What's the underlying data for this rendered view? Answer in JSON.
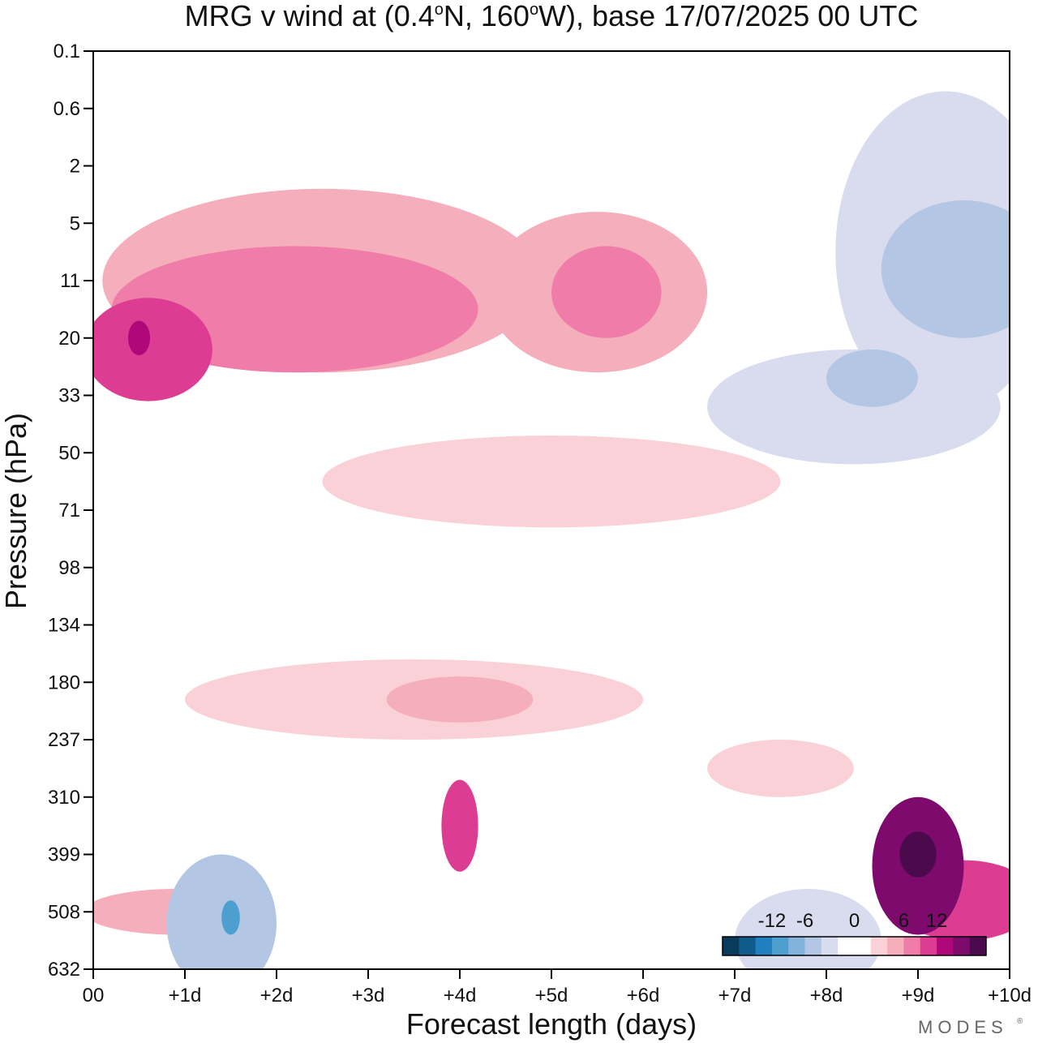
{
  "chart_data": {
    "type": "heatmap",
    "title": "MRG v wind at (0.4°N, 160°W),  base 17/07/2025  00 UTC",
    "title_parts": {
      "a": "MRG v wind at (0.4",
      "o1": "o",
      "b": "N, 160",
      "o2": "o",
      "c": "W),  base 17/07/2025  00 UTC"
    },
    "xlabel": "Forecast length (days)",
    "ylabel": "Pressure (hPa)",
    "x_ticks": [
      "00",
      "+1d",
      "+2d",
      "+3d",
      "+4d",
      "+5d",
      "+6d",
      "+7d",
      "+8d",
      "+9d",
      "+10d"
    ],
    "y_ticks": [
      "0.1",
      "0.6",
      "2",
      "5",
      "11",
      "20",
      "33",
      "50",
      "71",
      "98",
      "134",
      "180",
      "237",
      "310",
      "399",
      "508",
      "632"
    ],
    "xlim": [
      0,
      10
    ],
    "colorbar": {
      "ticks": [
        "-12",
        "-6",
        "0",
        "6",
        "12"
      ],
      "colors": [
        "#0b3b5c",
        "#0f5b8c",
        "#1f7fbf",
        "#4d9fd0",
        "#83b3dd",
        "#b3c6e3",
        "#d9dcee",
        "#ffffff",
        "#ffffff",
        "#f9d1d6",
        "#f5aebb",
        "#f07ca9",
        "#dc3d93",
        "#b0087a",
        "#7e0a6e",
        "#4b0a4c"
      ]
    },
    "contour_regions": [
      {
        "level": 3,
        "cx": 2.5,
        "cy": 4,
        "rx": 2.4,
        "ry": 1.6
      },
      {
        "level": 3,
        "cx": 5.5,
        "cy": 4.2,
        "rx": 1.2,
        "ry": 1.4
      },
      {
        "level": 4,
        "cx": 2.2,
        "cy": 4.5,
        "rx": 2.0,
        "ry": 1.1
      },
      {
        "level": 4,
        "cx": 5.6,
        "cy": 4.2,
        "rx": 0.6,
        "ry": 0.8
      },
      {
        "level": 5,
        "cx": 0.6,
        "cy": 5.2,
        "rx": 0.7,
        "ry": 0.9
      },
      {
        "level": 6,
        "cx": 0.5,
        "cy": 5.0,
        "rx": 0.12,
        "ry": 0.3
      },
      {
        "level": -2,
        "cx": 9.3,
        "cy": 3.5,
        "rx": 1.2,
        "ry": 2.8
      },
      {
        "level": -3,
        "cx": 9.5,
        "cy": 3.8,
        "rx": 0.9,
        "ry": 1.2
      },
      {
        "level": -2,
        "cx": 8.3,
        "cy": 6.2,
        "rx": 1.6,
        "ry": 1.0
      },
      {
        "level": -3,
        "cx": 8.5,
        "cy": 5.7,
        "rx": 0.5,
        "ry": 0.5
      },
      {
        "level": -1,
        "cx": 7.8,
        "cy": 6.0,
        "rx": 2.5,
        "ry": 1.5
      },
      {
        "level": 2,
        "cx": 5.0,
        "cy": 7.5,
        "rx": 2.5,
        "ry": 0.8
      },
      {
        "level": -1,
        "cx": 2.0,
        "cy": 7.4,
        "rx": 1.8,
        "ry": 0.5
      },
      {
        "level": 2,
        "cx": 3.5,
        "cy": 11.3,
        "rx": 2.5,
        "ry": 0.7
      },
      {
        "level": 3,
        "cx": 4.0,
        "cy": 11.3,
        "rx": 0.8,
        "ry": 0.4
      },
      {
        "level": 2,
        "cx": 7.5,
        "cy": 12.5,
        "rx": 0.8,
        "ry": 0.5
      },
      {
        "level": 3,
        "cx": 0.9,
        "cy": 15.0,
        "rx": 1.0,
        "ry": 0.4
      },
      {
        "level": 5,
        "cx": 9.5,
        "cy": 14.8,
        "rx": 0.8,
        "ry": 0.7
      },
      {
        "level": 7,
        "cx": 9.0,
        "cy": 14.2,
        "rx": 0.5,
        "ry": 1.2
      },
      {
        "level": 8,
        "cx": 9.0,
        "cy": 14.0,
        "rx": 0.2,
        "ry": 0.4
      },
      {
        "level": -3,
        "cx": 1.4,
        "cy": 15.2,
        "rx": 0.6,
        "ry": 1.2
      },
      {
        "level": -5,
        "cx": 1.5,
        "cy": 15.1,
        "rx": 0.1,
        "ry": 0.3
      },
      {
        "level": -2,
        "cx": 7.8,
        "cy": 15.5,
        "rx": 0.8,
        "ry": 0.9
      },
      {
        "level": 5,
        "cx": 4.0,
        "cy": 13.5,
        "rx": 0.2,
        "ry": 0.8
      }
    ]
  }
}
